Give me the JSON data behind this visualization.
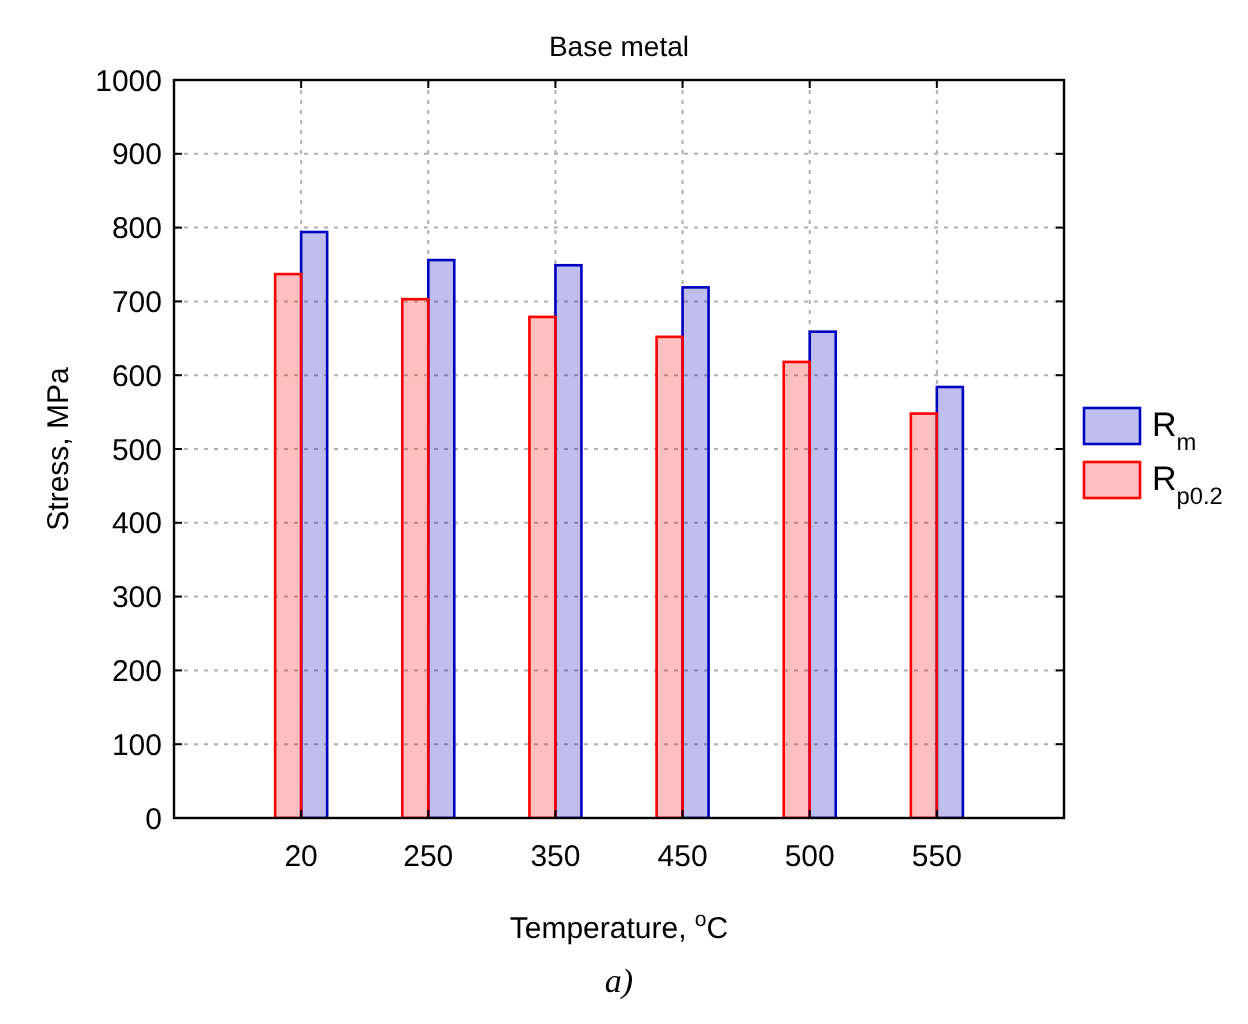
{
  "chart_data": {
    "type": "bar",
    "title": "Base metal",
    "xlabel": "Temperature, $^{o}$C",
    "ylabel": "Stress, MPa",
    "categories": [
      null,
      "20",
      "250",
      "350",
      "450",
      "500",
      "550",
      null
    ],
    "series": [
      {
        "name": "R$_{m}$",
        "color": "#0000c0",
        "values": [
          null,
          794,
          756,
          749,
          719,
          659,
          584,
          0
        ]
      },
      {
        "name": "R$_{p0.2}$",
        "color": "#ff0000",
        "values": [
          null,
          737,
          703,
          679,
          652,
          618,
          548,
          0
        ]
      }
    ],
    "ylim": [
      0,
      1000
    ],
    "yticks": [
      0,
      100,
      200,
      300,
      400,
      500,
      600,
      700,
      800,
      900,
      1000
    ],
    "grid": true,
    "legend": "right",
    "annotations": [
      "a)"
    ]
  }
}
